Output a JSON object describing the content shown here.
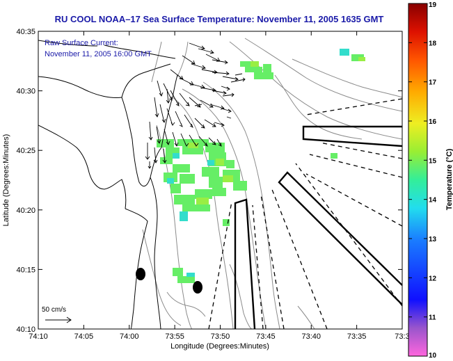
{
  "title": "RU COOL  NOAA–17  Sea Surface Temperature:  November 11, 2005 1635 GMT",
  "overlay": {
    "line1": "Raw Surface Current:",
    "line2": "November 11, 2005 16:00 GMT"
  },
  "scale_label": "50 cm/s",
  "colors": {
    "title_text": "#1a1aa8",
    "coast": "#000000",
    "bathymetry": "#888888"
  },
  "chart_data": {
    "type": "heatmap",
    "title": "RU COOL  NOAA–17  Sea Surface Temperature:  November 11, 2005 1635 GMT",
    "xlabel": "Longitude (Degrees:Minutes)",
    "ylabel": "Latitude (Degrees:Minutes)",
    "x_ticks": [
      "74:10",
      "74:05",
      "74:00",
      "73:55",
      "73:50",
      "73:45",
      "73:40",
      "73:35",
      "73:3"
    ],
    "y_ticks": [
      "40:10",
      "40:15",
      "40:20",
      "40:25",
      "40:30",
      "40:35"
    ],
    "xlim_minutes_west": [
      10,
      -30
    ],
    "ylim": [
      "40:10",
      "40:35"
    ],
    "colorbar": {
      "label": "Temperature (°C)",
      "min": 10,
      "max": 19,
      "ticks": [
        "19",
        "18",
        "17",
        "16",
        "15",
        "14",
        "13",
        "12",
        "11",
        "10"
      ]
    },
    "markers": [
      {
        "lon": "73:59",
        "lat": "40:14.5"
      },
      {
        "lon": "73:52.5",
        "lat": "40:13.5"
      }
    ]
  }
}
